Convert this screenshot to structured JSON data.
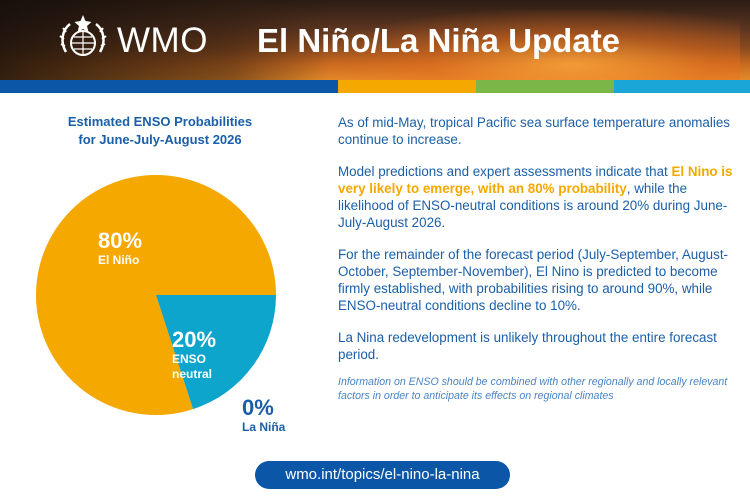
{
  "header": {
    "org_name": "WMO",
    "title": "El Niño/La Niña Update",
    "logo_icon": "wmo-emblem-icon"
  },
  "colors": {
    "primary_blue": "#1a5fa8",
    "el_nino": "#f5a800",
    "neutral": "#0ea5cc",
    "stripe_blue": "#0b56a6",
    "stripe_orange": "#f5a800",
    "stripe_green": "#7ab648",
    "stripe_cyan": "#1aa7d8"
  },
  "chart": {
    "title_line1": "Estimated ENSO Probabilities",
    "title_line2": "for June-July-August 2026"
  },
  "chart_data": {
    "type": "pie",
    "title": "Estimated ENSO Probabilities for June-July-August 2026",
    "slices": [
      {
        "label": "El Niño",
        "value": 80,
        "display": "80%",
        "color": "#f5a800"
      },
      {
        "label": "ENSO neutral",
        "value": 20,
        "display": "20%",
        "color": "#0ea5cc"
      },
      {
        "label": "La Niña",
        "value": 0,
        "display": "0%",
        "color": "#1a5fa8"
      }
    ]
  },
  "labels": {
    "el_nino_pct": "80%",
    "el_nino_name": "El Niño",
    "neutral_pct": "20%",
    "neutral_name_1": "ENSO",
    "neutral_name_2": "neutral",
    "la_nina_pct": "0%",
    "la_nina_name": "La Niña"
  },
  "body": {
    "p1": "As of mid-May, tropical Pacific sea surface temperature anomalies continue to increase.",
    "p2_before": "Model predictions and expert assessments indicate that ",
    "p2_highlight": "El Nino is very likely to emerge, with an 80% probability",
    "p2_after": ", while the likelihood of ENSO-neutral conditions is around 20% during June-July-August 2026.",
    "p3": "For the remainder of the forecast period (July-September, August-October, September-November), El Nino is predicted to become firmly established, with probabilities rising to around 90%, while ENSO-neutral conditions decline to 10%.",
    "p4": "La Nina redevelopment is unlikely throughout the entire forecast period.",
    "note": "Information on ENSO should be combined with other regionally and locally relevant factors in order to anticipate its effects on regional climates"
  },
  "footer": {
    "url": "wmo.int/topics/el-nino-la-nina"
  }
}
